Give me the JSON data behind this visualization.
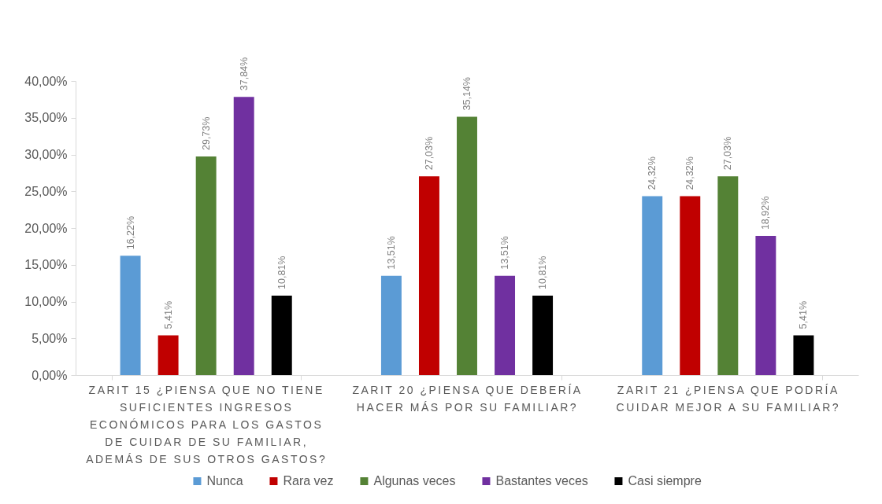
{
  "chart_data": {
    "type": "bar",
    "categories": [
      "ZARIT 15 ¿PIENSA QUE NO TIENE SUFICIENTES INGRESOS ECONÓMICOS PARA LOS GASTOS DE CUIDAR DE SU FAMILIAR, ADEMÁS DE SUS OTROS GASTOS?",
      "ZARIT 20 ¿PIENSA QUE DEBERÍA HACER MÁS POR SU FAMILIAR?",
      "ZARIT 21 ¿PIENSA QUE PODRÍA CUIDAR MEJOR A SU FAMILIAR?"
    ],
    "series": [
      {
        "name": "Nunca",
        "color": "#5b9bd5",
        "values": [
          16.22,
          13.51,
          24.32
        ],
        "value_labels": [
          "16,22%",
          "13,51%",
          "24,32%"
        ]
      },
      {
        "name": "Rara vez",
        "color": "#c00000",
        "values": [
          5.41,
          27.03,
          24.32
        ],
        "value_labels": [
          "5,41%",
          "27,03%",
          "24,32%"
        ]
      },
      {
        "name": "Algunas veces",
        "color": "#548235",
        "values": [
          29.73,
          35.14,
          27.03
        ],
        "value_labels": [
          "29,73%",
          "35,14%",
          "27,03%"
        ]
      },
      {
        "name": "Bastantes veces",
        "color": "#7030a0",
        "values": [
          37.84,
          13.51,
          18.92
        ],
        "value_labels": [
          "37,84%",
          "13,51%",
          "18,92%"
        ]
      },
      {
        "name": "Casi siempre",
        "color": "#000000",
        "values": [
          10.81,
          10.81,
          5.41
        ],
        "value_labels": [
          "10,81%",
          "10,81%",
          "5,41%"
        ]
      }
    ],
    "ylim": [
      0,
      40
    ],
    "yticks": [
      {
        "value": 0,
        "label": "0,00%"
      },
      {
        "value": 5,
        "label": "5,00%"
      },
      {
        "value": 10,
        "label": "10,00%"
      },
      {
        "value": 15,
        "label": "15,00%"
      },
      {
        "value": 20,
        "label": "20,00%"
      },
      {
        "value": 25,
        "label": "25,00%"
      },
      {
        "value": 30,
        "label": "30,00%"
      },
      {
        "value": 35,
        "label": "35,00%"
      },
      {
        "value": 40,
        "label": "40,00%"
      }
    ],
    "legend": "bottom"
  }
}
